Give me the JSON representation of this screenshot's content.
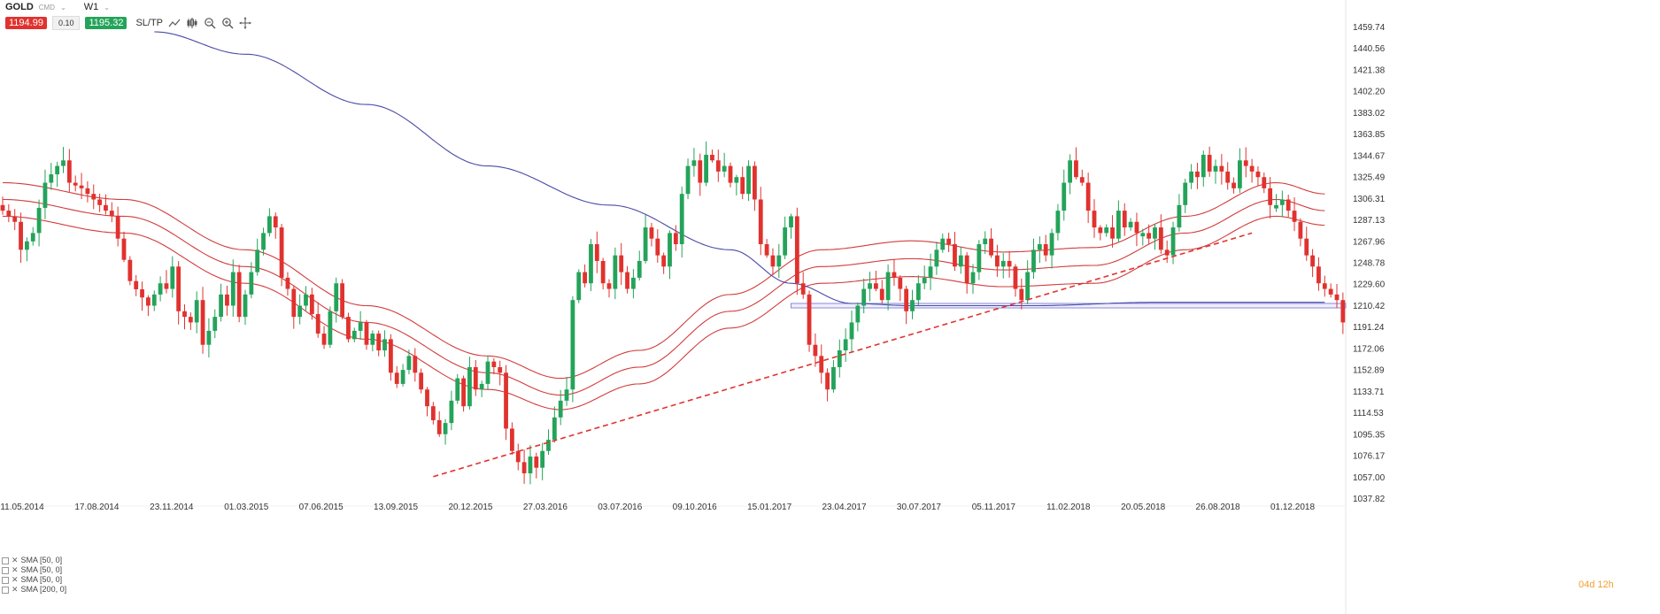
{
  "toolbar": {
    "symbol": "GOLD",
    "symbol_sub": "CMD",
    "timeframe": "W1",
    "bid": "1194.99",
    "spread": "0.10",
    "ask": "1195.32",
    "sltp_label": "SL/TP",
    "icons": [
      "line-chart-icon",
      "candles-icon",
      "zoom-out-icon",
      "zoom-in-icon",
      "crosshair-icon"
    ]
  },
  "legend": {
    "items": [
      "SMA [50, 0]",
      "SMA [50, 0]",
      "SMA [50, 0]",
      "SMA [200, 0]"
    ]
  },
  "countdown": "04d 12h",
  "colors": {
    "bull": "#24a35a",
    "bear": "#e0322e",
    "envelope": "#d23c3c",
    "sma200": "#4a4aa8",
    "trendline": "#e0322e",
    "support": "#8a8ad8"
  },
  "chart_data": {
    "type": "candlestick",
    "instrument": "GOLD",
    "timeframe": "W1",
    "ylim": [
      1037.82,
      1459.74
    ],
    "y_ticks": [
      1459.74,
      1440.56,
      1421.38,
      1402.2,
      1383.02,
      1363.85,
      1344.67,
      1325.49,
      1306.31,
      1287.13,
      1267.96,
      1248.78,
      1229.6,
      1210.42,
      1191.24,
      1172.06,
      1152.89,
      1133.71,
      1114.53,
      1095.35,
      1076.17,
      1057.0,
      1037.82
    ],
    "x_ticks": [
      "11.05.2014",
      "17.08.2014",
      "23.11.2014",
      "01.03.2015",
      "07.06.2015",
      "13.09.2015",
      "20.12.2015",
      "27.03.2016",
      "03.07.2016",
      "09.10.2016",
      "15.01.2017",
      "23.04.2017",
      "30.07.2017",
      "05.11.2017",
      "11.02.2018",
      "20.05.2018",
      "26.08.2018",
      "01.12.2018"
    ],
    "last_price": 1194.99,
    "close_anchors": [
      [
        0,
        1295
      ],
      [
        2,
        1285
      ],
      [
        3,
        1260
      ],
      [
        5,
        1275
      ],
      [
        7,
        1320
      ],
      [
        9,
        1335
      ],
      [
        10,
        1340
      ],
      [
        11,
        1320
      ],
      [
        13,
        1315
      ],
      [
        15,
        1305
      ],
      [
        18,
        1290
      ],
      [
        19,
        1270
      ],
      [
        21,
        1232
      ],
      [
        24,
        1210
      ],
      [
        26,
        1230
      ],
      [
        27,
        1225
      ],
      [
        28,
        1245
      ],
      [
        29,
        1205
      ],
      [
        31,
        1195
      ],
      [
        32,
        1215
      ],
      [
        33,
        1175
      ],
      [
        35,
        1200
      ],
      [
        36,
        1220
      ],
      [
        37,
        1210
      ],
      [
        38,
        1240
      ],
      [
        39,
        1200
      ],
      [
        40,
        1220
      ],
      [
        42,
        1260
      ],
      [
        44,
        1290
      ],
      [
        45,
        1280
      ],
      [
        46,
        1235
      ],
      [
        47,
        1225
      ],
      [
        48,
        1200
      ],
      [
        50,
        1220
      ],
      [
        52,
        1185
      ],
      [
        53,
        1175
      ],
      [
        54,
        1205
      ],
      [
        55,
        1230
      ],
      [
        56,
        1200
      ],
      [
        57,
        1180
      ],
      [
        59,
        1195
      ],
      [
        60,
        1175
      ],
      [
        61,
        1185
      ],
      [
        62,
        1170
      ],
      [
        63,
        1180
      ],
      [
        64,
        1150
      ],
      [
        65,
        1140
      ],
      [
        67,
        1165
      ],
      [
        68,
        1150
      ],
      [
        70,
        1120
      ],
      [
        72,
        1095
      ],
      [
        73,
        1105
      ],
      [
        75,
        1145
      ],
      [
        76,
        1120
      ],
      [
        77,
        1155
      ],
      [
        78,
        1135
      ],
      [
        79,
        1140
      ],
      [
        80,
        1160
      ],
      [
        82,
        1150
      ],
      [
        83,
        1100
      ],
      [
        84,
        1080
      ],
      [
        85,
        1070
      ],
      [
        86,
        1060
      ],
      [
        87,
        1075
      ],
      [
        88,
        1065
      ],
      [
        89,
        1080
      ],
      [
        90,
        1090
      ],
      [
        91,
        1110
      ],
      [
        92,
        1125
      ],
      [
        93,
        1135
      ],
      [
        94,
        1215
      ],
      [
        95,
        1240
      ],
      [
        96,
        1230
      ],
      [
        97,
        1265
      ],
      [
        98,
        1250
      ],
      [
        99,
        1230
      ],
      [
        100,
        1225
      ],
      [
        101,
        1255
      ],
      [
        102,
        1240
      ],
      [
        103,
        1225
      ],
      [
        104,
        1235
      ],
      [
        105,
        1250
      ],
      [
        106,
        1280
      ],
      [
        107,
        1270
      ],
      [
        108,
        1255
      ],
      [
        109,
        1245
      ],
      [
        110,
        1275
      ],
      [
        111,
        1265
      ],
      [
        112,
        1310
      ],
      [
        113,
        1335
      ],
      [
        114,
        1340
      ],
      [
        115,
        1320
      ],
      [
        116,
        1345
      ],
      [
        117,
        1340
      ],
      [
        118,
        1330
      ],
      [
        119,
        1335
      ],
      [
        120,
        1320
      ],
      [
        121,
        1325
      ],
      [
        122,
        1310
      ],
      [
        123,
        1335
      ],
      [
        124,
        1305
      ],
      [
        125,
        1265
      ],
      [
        126,
        1255
      ],
      [
        127,
        1245
      ],
      [
        128,
        1255
      ],
      [
        129,
        1280
      ],
      [
        130,
        1290
      ],
      [
        131,
        1230
      ],
      [
        132,
        1220
      ],
      [
        133,
        1175
      ],
      [
        134,
        1165
      ],
      [
        135,
        1150
      ],
      [
        136,
        1135
      ],
      [
        137,
        1155
      ],
      [
        138,
        1170
      ],
      [
        139,
        1180
      ],
      [
        140,
        1195
      ],
      [
        141,
        1210
      ],
      [
        142,
        1225
      ],
      [
        143,
        1230
      ],
      [
        144,
        1225
      ],
      [
        145,
        1215
      ],
      [
        146,
        1240
      ],
      [
        147,
        1235
      ],
      [
        148,
        1225
      ],
      [
        149,
        1205
      ],
      [
        150,
        1215
      ],
      [
        151,
        1230
      ],
      [
        152,
        1235
      ],
      [
        153,
        1245
      ],
      [
        154,
        1260
      ],
      [
        155,
        1270
      ],
      [
        156,
        1265
      ],
      [
        157,
        1245
      ],
      [
        158,
        1255
      ],
      [
        159,
        1230
      ],
      [
        160,
        1240
      ],
      [
        161,
        1265
      ],
      [
        162,
        1270
      ],
      [
        163,
        1255
      ],
      [
        164,
        1245
      ],
      [
        165,
        1250
      ],
      [
        166,
        1245
      ],
      [
        167,
        1225
      ],
      [
        168,
        1215
      ],
      [
        169,
        1240
      ],
      [
        170,
        1260
      ],
      [
        171,
        1265
      ],
      [
        172,
        1255
      ],
      [
        173,
        1275
      ],
      [
        174,
        1295
      ],
      [
        175,
        1320
      ],
      [
        176,
        1340
      ],
      [
        177,
        1325
      ],
      [
        178,
        1320
      ],
      [
        179,
        1295
      ],
      [
        180,
        1280
      ],
      [
        181,
        1275
      ],
      [
        182,
        1280
      ],
      [
        183,
        1270
      ],
      [
        184,
        1295
      ],
      [
        185,
        1280
      ],
      [
        186,
        1285
      ],
      [
        187,
        1275
      ],
      [
        188,
        1275
      ],
      [
        189,
        1270
      ],
      [
        190,
        1280
      ],
      [
        191,
        1260
      ],
      [
        192,
        1255
      ],
      [
        193,
        1280
      ],
      [
        194,
        1300
      ],
      [
        195,
        1320
      ],
      [
        196,
        1330
      ],
      [
        197,
        1325
      ],
      [
        198,
        1345
      ],
      [
        199,
        1330
      ],
      [
        200,
        1335
      ],
      [
        201,
        1330
      ],
      [
        202,
        1320
      ],
      [
        203,
        1315
      ],
      [
        204,
        1340
      ],
      [
        205,
        1335
      ],
      [
        206,
        1330
      ],
      [
        207,
        1325
      ],
      [
        208,
        1315
      ],
      [
        209,
        1300
      ],
      [
        210,
        1300
      ],
      [
        211,
        1305
      ],
      [
        212,
        1295
      ],
      [
        213,
        1285
      ],
      [
        214,
        1270
      ],
      [
        215,
        1255
      ],
      [
        216,
        1245
      ],
      [
        217,
        1230
      ],
      [
        218,
        1225
      ],
      [
        219,
        1220
      ],
      [
        220,
        1215
      ],
      [
        221,
        1195
      ]
    ],
    "series": [
      {
        "name": "SMA [50, 0]",
        "kind": "line",
        "points": [
          [
            0,
            1320
          ],
          [
            20,
            1305
          ],
          [
            40,
            1260
          ],
          [
            60,
            1210
          ],
          [
            80,
            1165
          ],
          [
            92,
            1145
          ],
          [
            105,
            1170
          ],
          [
            120,
            1220
          ],
          [
            135,
            1260
          ],
          [
            150,
            1268
          ],
          [
            165,
            1258
          ],
          [
            180,
            1262
          ],
          [
            195,
            1290
          ],
          [
            210,
            1320
          ],
          [
            218,
            1310
          ]
        ]
      },
      {
        "name": "SMA [50, 0]",
        "kind": "line",
        "points": [
          [
            0,
            1305
          ],
          [
            20,
            1290
          ],
          [
            40,
            1245
          ],
          [
            60,
            1195
          ],
          [
            80,
            1150
          ],
          [
            92,
            1130
          ],
          [
            105,
            1155
          ],
          [
            120,
            1205
          ],
          [
            135,
            1245
          ],
          [
            150,
            1252
          ],
          [
            165,
            1242
          ],
          [
            180,
            1246
          ],
          [
            195,
            1275
          ],
          [
            210,
            1305
          ],
          [
            218,
            1295
          ]
        ]
      },
      {
        "name": "SMA [50, 0]",
        "kind": "line",
        "points": [
          [
            0,
            1290
          ],
          [
            20,
            1275
          ],
          [
            40,
            1230
          ],
          [
            60,
            1180
          ],
          [
            80,
            1135
          ],
          [
            92,
            1117
          ],
          [
            105,
            1140
          ],
          [
            120,
            1190
          ],
          [
            135,
            1230
          ],
          [
            150,
            1236
          ],
          [
            165,
            1227
          ],
          [
            180,
            1230
          ],
          [
            195,
            1260
          ],
          [
            210,
            1290
          ],
          [
            218,
            1282
          ]
        ]
      },
      {
        "name": "SMA [200, 0]",
        "kind": "line",
        "points": [
          [
            25,
            1455
          ],
          [
            40,
            1435
          ],
          [
            60,
            1390
          ],
          [
            80,
            1335
          ],
          [
            100,
            1300
          ],
          [
            120,
            1260
          ],
          [
            130,
            1230
          ],
          [
            140,
            1212
          ],
          [
            150,
            1210
          ],
          [
            170,
            1210
          ],
          [
            190,
            1213
          ],
          [
            210,
            1213
          ],
          [
            218,
            1213
          ]
        ]
      }
    ],
    "annotations": [
      {
        "type": "trendline",
        "style": "dashed",
        "from": [
          71,
          1057
        ],
        "to": [
          206,
          1275
        ]
      },
      {
        "type": "horizontal-band",
        "from_index": 130,
        "y": [
          1208,
          1212
        ]
      }
    ]
  }
}
